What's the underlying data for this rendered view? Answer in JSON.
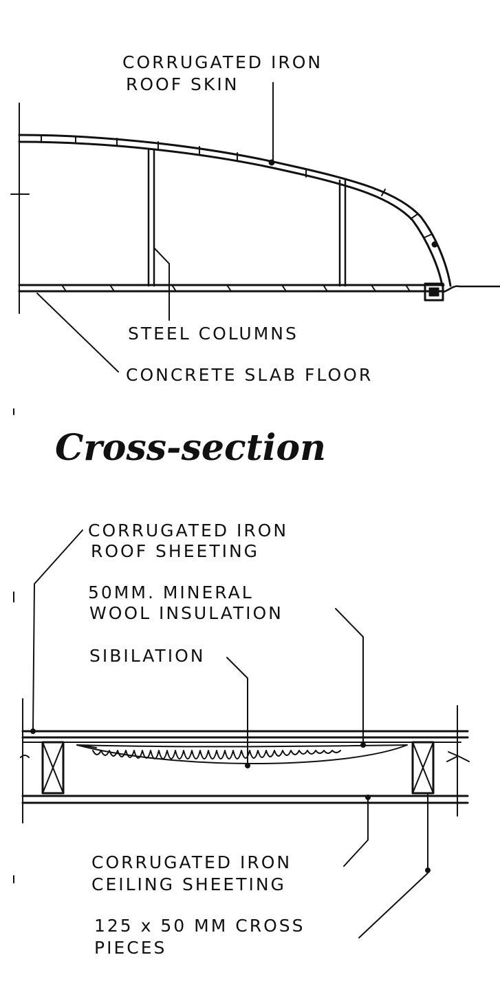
{
  "cross_section_title": "Cross-section",
  "section_labels": {
    "roof_skin_line1": "CORRUGATED IRON",
    "roof_skin_line2": "ROOF SKIN",
    "steel_columns": "STEEL COLUMNS",
    "concrete_slab": "CONCRETE SLAB FLOOR"
  },
  "detail_labels": {
    "roof_sheeting_line1": "CORRUGATED IRON",
    "roof_sheeting_line2": "ROOF SHEETING",
    "insulation_line1": "50MM. MINERAL",
    "insulation_line2": "WOOL INSULATION",
    "sibilation": "SIBILATION",
    "ceiling_line1": "CORRUGATED IRON",
    "ceiling_line2": "CEILING SHEETING",
    "cross_pieces_line1": "125 x 50 MM CROSS",
    "cross_pieces_line2": "PIECES"
  },
  "colors": {
    "ink": "#111111",
    "paper": "#ffffff"
  }
}
